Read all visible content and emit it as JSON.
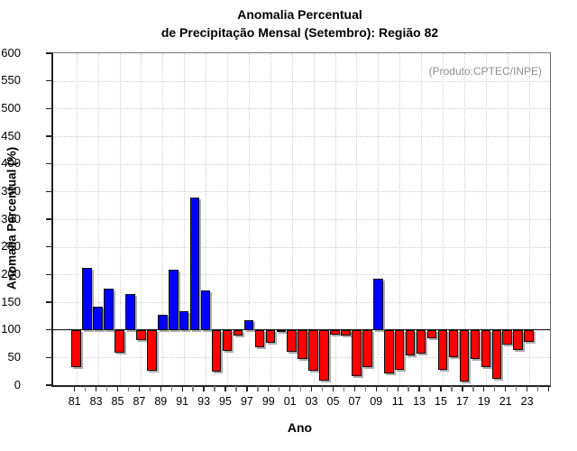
{
  "title": {
    "line1": "Anomalia Percentual",
    "line2": "de Precipitação Mensal (Setembro): Região 82"
  },
  "annotation": "(Produto:CPTEC/INPE)",
  "chart_data": {
    "type": "bar",
    "title": "Anomalia Percentual de Precipitação Mensal (Setembro): Região 82",
    "xlabel": "Ano",
    "ylabel": "Anomalia Percentual (%)",
    "ylim": [
      0,
      600
    ],
    "ytick_step": 50,
    "baseline": 100,
    "grid": true,
    "legend": "none",
    "colors": {
      "above_baseline": "#0000ff",
      "below_baseline": "#ff0000"
    },
    "x_tick_labels": [
      "81",
      "83",
      "85",
      "87",
      "89",
      "91",
      "93",
      "95",
      "97",
      "99",
      "01",
      "03",
      "05",
      "07",
      "09",
      "11",
      "13",
      "15",
      "17",
      "19",
      "21",
      "23"
    ],
    "years": [
      1981,
      1982,
      1983,
      1984,
      1985,
      1986,
      1987,
      1988,
      1989,
      1990,
      1991,
      1992,
      1993,
      1994,
      1995,
      1996,
      1997,
      1998,
      1999,
      2000,
      2001,
      2002,
      2003,
      2004,
      2005,
      2006,
      2007,
      2008,
      2009,
      2010,
      2011,
      2012,
      2013,
      2014,
      2015,
      2016,
      2017,
      2018,
      2019,
      2020,
      2021,
      2022,
      2023
    ],
    "values": [
      33,
      212,
      142,
      174,
      58,
      165,
      82,
      26,
      127,
      208,
      134,
      339,
      172,
      24,
      62,
      90,
      118,
      68,
      76,
      96,
      61,
      48,
      26,
      8,
      92,
      90,
      17,
      33,
      193,
      21,
      27,
      54,
      57,
      84,
      27,
      51,
      6,
      47,
      33,
      11,
      74,
      63,
      78
    ]
  }
}
